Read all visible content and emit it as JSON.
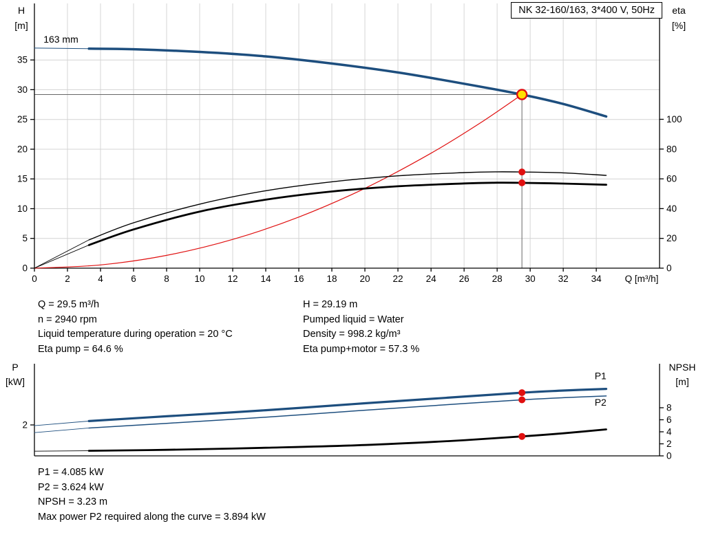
{
  "title_box": "NK 32-160/163, 3*400 V, 50Hz",
  "info_top": {
    "left": [
      "Q = 29.5 m³/h",
      "n = 2940 rpm",
      "Liquid temperature during operation = 20 °C",
      "Eta pump = 64.6 %"
    ],
    "right": [
      "H = 29.19 m",
      "Pumped liquid = Water",
      "Density = 998.2 kg/m³",
      "Eta pump+motor = 57.3 %"
    ]
  },
  "info_bottom": [
    "P1 = 4.085 kW",
    "P2 = 3.624 kW",
    "NPSH = 3.23 m",
    "Max power P2 required along the curve = 3.894 kW"
  ],
  "colors": {
    "curve_blue": "#1d4e7e",
    "curve_red": "#e01010",
    "duty_yellow": "#ffe100",
    "grid": "#d4d4d4",
    "crosshair": "#666666"
  },
  "chart_data": [
    {
      "type": "line",
      "title": "NK 32-160/163, 3*400 V, 50Hz",
      "xlabel": "Q [m³/h]",
      "x_ticks": [
        0,
        2,
        4,
        6,
        8,
        10,
        12,
        14,
        16,
        18,
        20,
        22,
        24,
        26,
        28,
        30,
        32,
        34
      ],
      "xlim": [
        0,
        37.83
      ],
      "grid": true,
      "left_axis": {
        "label_line1": "H",
        "label_line2": "[m]",
        "ticks": [
          0,
          5,
          10,
          15,
          20,
          25,
          30,
          35
        ],
        "lim": [
          0,
          44.5
        ]
      },
      "right_axis": {
        "label_line1": "eta",
        "label_line2": "[%]",
        "ticks": [
          0,
          20,
          40,
          60,
          80,
          100
        ],
        "lim": [
          0,
          177.8
        ]
      },
      "crosshair": {
        "q": 29.5,
        "h": 29.19
      },
      "series": [
        {
          "name": "system-curve",
          "axis": "left",
          "color": "#e01010",
          "width": 1.2,
          "x": [
            0,
            4,
            8,
            12,
            16,
            20,
            24,
            27,
            29.5
          ],
          "y": [
            0,
            0.54,
            2.15,
            4.83,
            8.59,
            13.42,
            19.32,
            24.45,
            29.19
          ]
        },
        {
          "name": "eta-pump-curve-ext",
          "axis": "right",
          "color": "#000000",
          "width": 0.9,
          "x": [
            0,
            3.3
          ],
          "y": [
            0,
            19
          ]
        },
        {
          "name": "eta-pump-curve",
          "axis": "right",
          "color": "#000000",
          "width": 1.4,
          "x": [
            3.3,
            6,
            10,
            14,
            18,
            22,
            26,
            28,
            29.5,
            32,
            34.6
          ],
          "y": [
            19,
            30.5,
            43,
            52,
            58,
            62,
            64.2,
            64.7,
            64.6,
            64,
            62.3
          ]
        },
        {
          "name": "eta-pump-motor-curve-ext",
          "axis": "right",
          "color": "#000000",
          "width": 0.9,
          "x": [
            0,
            3.3
          ],
          "y": [
            0,
            15.5
          ]
        },
        {
          "name": "eta-pump-motor-curve",
          "axis": "right",
          "color": "#000000",
          "width": 2.8,
          "x": [
            3.3,
            6,
            10,
            14,
            18,
            22,
            26,
            28,
            29.5,
            32,
            34.6
          ],
          "y": [
            15.5,
            26,
            38,
            46,
            51.5,
            55,
            56.9,
            57.4,
            57.3,
            56.8,
            56
          ]
        },
        {
          "name": "head-curve-ext",
          "axis": "left",
          "color": "#1d4e7e",
          "width": 1,
          "x": [
            0,
            3.3
          ],
          "y": [
            37.0,
            36.9
          ]
        },
        {
          "name": "head-curve",
          "axis": "left",
          "color": "#1d4e7e",
          "width": 3.5,
          "x": [
            3.3,
            6,
            10,
            14,
            18,
            22,
            26,
            29.5,
            32,
            34.6
          ],
          "y": [
            36.9,
            36.8,
            36.35,
            35.6,
            34.4,
            32.9,
            31.0,
            29.19,
            27.6,
            25.5
          ]
        }
      ],
      "markers": [
        {
          "name": "eta-pump-point",
          "axis": "right",
          "q": 29.5,
          "v": 64.6,
          "r": 5,
          "fill": "#e01010"
        },
        {
          "name": "eta-pump-motor-point",
          "axis": "right",
          "q": 29.5,
          "v": 57.3,
          "r": 5,
          "fill": "#e01010"
        },
        {
          "name": "duty-point",
          "axis": "left",
          "q": 29.5,
          "v": 29.19,
          "r": 7,
          "fill": "#ffe100",
          "stroke": "#e01010",
          "stroke_width": 2.4
        }
      ],
      "curve_labels": [
        {
          "name": "impeller-size-label",
          "text": "163 mm",
          "q": 0.55,
          "axis": "left",
          "v": 37.9,
          "color": "#000000"
        }
      ]
    },
    {
      "type": "line",
      "title": "",
      "xlabel": "",
      "x_ticks": [],
      "xlim": [
        0,
        37.83
      ],
      "grid": false,
      "left_axis": {
        "label_line1": "P",
        "label_line2": "[kW]",
        "ticks": [
          2
        ],
        "lim": [
          0,
          5.955
        ]
      },
      "right_axis": {
        "label_line1": "NPSH",
        "label_line2": "[m]",
        "ticks": [
          0,
          2,
          4,
          6,
          8
        ],
        "lim": [
          0,
          15.31
        ]
      },
      "series": [
        {
          "name": "p1-curve-ext",
          "axis": "left",
          "color": "#1d4e7e",
          "width": 0.9,
          "x": [
            0,
            3.3
          ],
          "y": [
            1.95,
            2.25
          ]
        },
        {
          "name": "p1-curve",
          "axis": "left",
          "color": "#1d4e7e",
          "width": 3.2,
          "x": [
            3.3,
            8,
            14,
            20,
            25,
            29.5,
            32,
            34.6
          ],
          "y": [
            2.25,
            2.56,
            2.95,
            3.4,
            3.76,
            4.085,
            4.22,
            4.33
          ]
        },
        {
          "name": "p2-curve-ext",
          "axis": "left",
          "color": "#1d4e7e",
          "width": 0.9,
          "x": [
            0,
            3.3
          ],
          "y": [
            1.5,
            1.8
          ]
        },
        {
          "name": "p2-curve",
          "axis": "left",
          "color": "#1d4e7e",
          "width": 1.5,
          "x": [
            3.3,
            8,
            14,
            20,
            25,
            29.5,
            32,
            34.6
          ],
          "y": [
            1.8,
            2.1,
            2.5,
            2.95,
            3.31,
            3.624,
            3.76,
            3.87
          ]
        },
        {
          "name": "npsh-curve-ext",
          "axis": "right",
          "color": "#000000",
          "width": 0.9,
          "x": [
            0,
            3.3
          ],
          "y": [
            0.78,
            0.85
          ]
        },
        {
          "name": "npsh-curve",
          "axis": "right",
          "color": "#000000",
          "width": 2.8,
          "x": [
            3.3,
            8,
            14,
            20,
            25,
            29.5,
            32,
            34.6
          ],
          "y": [
            0.85,
            1.0,
            1.35,
            1.8,
            2.45,
            3.23,
            3.75,
            4.4
          ]
        }
      ],
      "markers": [
        {
          "name": "p1-point",
          "axis": "left",
          "q": 29.5,
          "v": 4.085,
          "r": 5,
          "fill": "#e01010"
        },
        {
          "name": "p2-point",
          "axis": "left",
          "q": 29.5,
          "v": 3.624,
          "r": 5,
          "fill": "#e01010"
        },
        {
          "name": "npsh-point",
          "axis": "right",
          "q": 29.5,
          "v": 3.23,
          "r": 5,
          "fill": "#e01010"
        }
      ],
      "curve_labels": [
        {
          "name": "p1-curve-label",
          "text": "P1",
          "q": 33.9,
          "axis": "left",
          "v": 4.95,
          "color": "#1d4e7e"
        },
        {
          "name": "p2-curve-label",
          "text": "P2",
          "q": 33.9,
          "axis": "left",
          "v": 3.25,
          "color": "#1d4e7e"
        }
      ]
    }
  ]
}
